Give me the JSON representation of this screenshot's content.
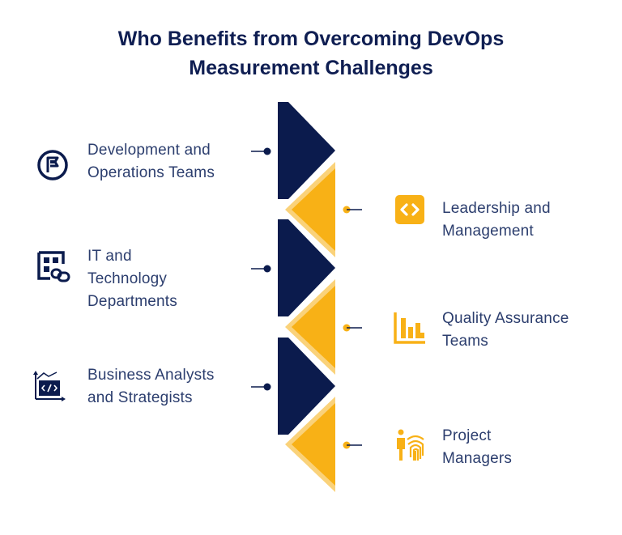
{
  "title": {
    "line1": "Who Benefits from Overcoming DevOps",
    "line2": "Measurement Challenges"
  },
  "colors": {
    "navy": "#0b1b4d",
    "amber": "#f8b116",
    "amber_shadow": "#fad27a",
    "text": "#2c3e6e"
  },
  "left_items": [
    {
      "lines": [
        "Development and",
        "Operations Teams"
      ],
      "icon": "flag-circle-icon"
    },
    {
      "lines": [
        "IT and",
        "Technology",
        "Departments"
      ],
      "icon": "dashboard-link-icon"
    },
    {
      "lines": [
        "Business Analysts",
        "and Strategists"
      ],
      "icon": "code-chart-icon"
    }
  ],
  "right_items": [
    {
      "lines": [
        "Leadership and",
        "Management"
      ],
      "icon": "code-brackets-icon"
    },
    {
      "lines": [
        "Quality Assurance",
        "Teams"
      ],
      "icon": "bar-chart-icon"
    },
    {
      "lines": [
        "Project",
        "Managers"
      ],
      "icon": "fingerprint-person-icon"
    }
  ]
}
